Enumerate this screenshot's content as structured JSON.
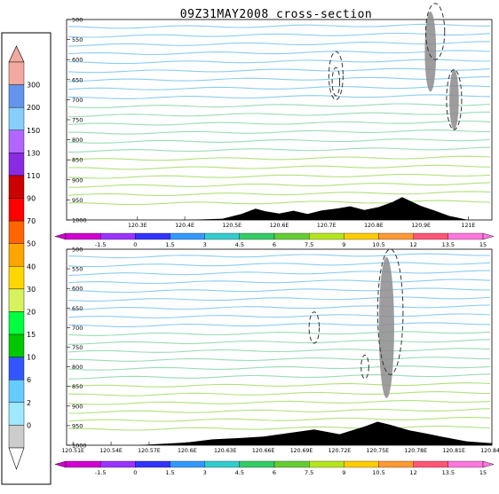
{
  "title": "09Z31MAY2008 cross-section",
  "colors": {
    "wind_cool": "#7fc7ee",
    "wind_mid": "#8fd6b0",
    "wind_warm": "#a8dd6e",
    "terrain": "#000000",
    "cloud": "#8c8c8c",
    "contour": "#333333",
    "violet": "#aa66cc"
  },
  "icons": {
    "left_colorbar_top": "triangle-up-icon",
    "left_colorbar_bottom": "triangle-down-icon",
    "h_colorbar_ends": "triangle-sideways-icon"
  },
  "left_colorbar": {
    "labels": [
      "300",
      "200",
      "150",
      "130",
      "110",
      "90",
      "70",
      "50",
      "40",
      "30",
      "20",
      "15",
      "10",
      "6",
      "2",
      "0"
    ],
    "colors": [
      "#f2a99f",
      "#6495ed",
      "#87cefa",
      "#b266ff",
      "#8a2be2",
      "#cc0000",
      "#ff0000",
      "#ff6600",
      "#ffa500",
      "#ffd700",
      "#d8f25d",
      "#00ff40",
      "#00c800",
      "#3355ff",
      "#66ccff",
      "#a0e8ff",
      "#cccccc"
    ]
  },
  "h_colorbar": {
    "labels": [
      "-1.5",
      "0",
      "1.5",
      "3",
      "4.5",
      "6",
      "7.5",
      "9",
      "10.5",
      "12",
      "13.5",
      "15"
    ],
    "colors": [
      "#d000d0",
      "#9a33ff",
      "#3333ff",
      "#3399ff",
      "#33cccc",
      "#33cc66",
      "#66cc33",
      "#b5e61d",
      "#ffcc00",
      "#ff9933",
      "#ff5577",
      "#ff77dd"
    ]
  },
  "chart_data": [
    {
      "type": "line",
      "panel": "top",
      "title": "09Z31MAY2008 cross-section",
      "y_ticks": [
        "500",
        "550",
        "600",
        "650",
        "700",
        "750",
        "800",
        "850",
        "900",
        "950",
        "1000"
      ],
      "y_range": [
        1000,
        500
      ],
      "x_ticks": [
        "120.3E",
        "120.4E",
        "120.5E",
        "120.6E",
        "120.7E",
        "120.8E",
        "120.9E",
        "121E"
      ],
      "x_range": [
        120.15,
        121.05
      ],
      "terrain": [
        [
          120.15,
          1000
        ],
        [
          120.4,
          1000
        ],
        [
          120.48,
          997
        ],
        [
          120.52,
          985
        ],
        [
          120.55,
          972
        ],
        [
          120.57,
          978
        ],
        [
          120.6,
          984
        ],
        [
          120.63,
          977
        ],
        [
          120.66,
          985
        ],
        [
          120.69,
          976
        ],
        [
          120.72,
          972
        ],
        [
          120.75,
          966
        ],
        [
          120.78,
          975
        ],
        [
          120.81,
          968
        ],
        [
          120.84,
          955
        ],
        [
          120.86,
          943
        ],
        [
          120.88,
          954
        ],
        [
          120.9,
          965
        ],
        [
          120.93,
          977
        ],
        [
          120.96,
          990
        ],
        [
          121.0,
          1000
        ],
        [
          121.05,
          1000
        ]
      ],
      "dashed_contours": [
        {
          "center": [
            120.72,
            640
          ],
          "half_width": 0.015,
          "half_height": 60
        },
        {
          "center": [
            120.72,
            655
          ],
          "half_width": 0.008,
          "half_height": 35
        },
        {
          "center": [
            120.93,
            530
          ],
          "half_width": 0.02,
          "half_height": 70
        },
        {
          "center": [
            120.97,
            700
          ],
          "half_width": 0.016,
          "half_height": 75
        }
      ],
      "shaded_cloud": [
        {
          "center": [
            120.92,
            580
          ],
          "half_width": 0.012,
          "half_height": 100
        },
        {
          "center": [
            120.97,
            700
          ],
          "half_width": 0.01,
          "half_height": 75
        }
      ]
    },
    {
      "type": "line",
      "panel": "bottom",
      "y_ticks": [
        "500",
        "550",
        "600",
        "650",
        "700",
        "750",
        "800",
        "850",
        "900",
        "950",
        "1000"
      ],
      "y_range": [
        1000,
        500
      ],
      "x_ticks": [
        "120.51E",
        "120.54E",
        "120.57E",
        "120.6E",
        "120.63E",
        "120.66E",
        "120.69E",
        "120.72E",
        "120.75E",
        "120.78E",
        "120.81E",
        "120.84E"
      ],
      "x_range": [
        120.505,
        120.84
      ],
      "terrain": [
        [
          120.505,
          1000
        ],
        [
          120.56,
          1000
        ],
        [
          120.6,
          993
        ],
        [
          120.62,
          985
        ],
        [
          120.64,
          982
        ],
        [
          120.66,
          978
        ],
        [
          120.68,
          969
        ],
        [
          120.7,
          960
        ],
        [
          120.72,
          972
        ],
        [
          120.74,
          952
        ],
        [
          120.75,
          940
        ],
        [
          120.76,
          948
        ],
        [
          120.775,
          962
        ],
        [
          120.79,
          971
        ],
        [
          120.8,
          978
        ],
        [
          120.82,
          990
        ],
        [
          120.84,
          995
        ]
      ],
      "dashed_contours": [
        {
          "center": [
            120.7,
            700
          ],
          "half_width": 0.004,
          "half_height": 40
        },
        {
          "center": [
            120.74,
            800
          ],
          "half_width": 0.003,
          "half_height": 30
        },
        {
          "center": [
            120.76,
            660
          ],
          "half_width": 0.01,
          "half_height": 160
        }
      ],
      "shaded_cloud": [
        {
          "center": [
            120.757,
            700
          ],
          "half_width": 0.006,
          "half_height": 180
        }
      ]
    }
  ]
}
